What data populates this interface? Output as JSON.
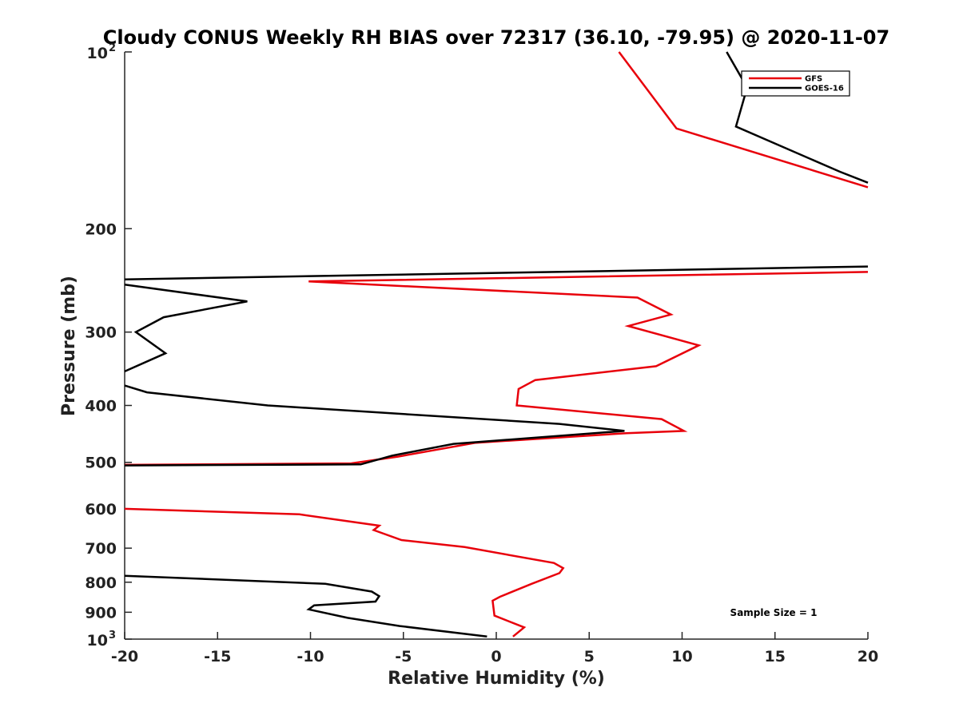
{
  "chart_data": {
    "type": "line",
    "title": "Cloudy CONUS Weekly RH BIAS over 72317 (36.10, -79.95) @ 2020-11-07",
    "xlabel": "Relative Humidity (%)",
    "ylabel": "Pressure (mb)",
    "xlim": [
      -20,
      20
    ],
    "ylim": [
      100,
      1000
    ],
    "y_scale": "log",
    "y_reversed": true,
    "x_ticks": [
      "-20",
      "-15",
      "-10",
      "-5",
      "0",
      "5",
      "10",
      "15",
      "20"
    ],
    "y_ticks": [
      {
        "value": 100,
        "label": "10",
        "sup": "2"
      },
      {
        "value": 200,
        "label": "200",
        "sup": ""
      },
      {
        "value": 300,
        "label": "300",
        "sup": ""
      },
      {
        "value": 400,
        "label": "400",
        "sup": ""
      },
      {
        "value": 500,
        "label": "500",
        "sup": ""
      },
      {
        "value": 600,
        "label": "600",
        "sup": ""
      },
      {
        "value": 700,
        "label": "700",
        "sup": ""
      },
      {
        "value": 800,
        "label": "800",
        "sup": ""
      },
      {
        "value": 900,
        "label": "900",
        "sup": ""
      },
      {
        "value": 1000,
        "label": "10",
        "sup": "3"
      }
    ],
    "legend": {
      "position": "top-right",
      "entries": [
        "GFS",
        "GOES-16"
      ]
    },
    "annotation": "Sample Size = 1",
    "series": [
      {
        "name": "GFS",
        "color": "#e8000b",
        "segments": [
          [
            [
              6.6,
              100
            ],
            [
              9.7,
              135
            ],
            [
              20,
              170
            ]
          ],
          [
            [
              20,
              237
            ],
            [
              -10.1,
              246
            ],
            [
              7.6,
              262
            ],
            [
              9.4,
              280
            ],
            [
              7.1,
              293
            ],
            [
              10.9,
              316
            ],
            [
              8.6,
              343
            ],
            [
              2.1,
              362
            ],
            [
              1.2,
              375
            ],
            [
              1.1,
              400
            ],
            [
              8.9,
              422
            ],
            [
              10.1,
              442
            ],
            [
              7.0,
              446
            ],
            [
              -1.1,
              463
            ],
            [
              -5.3,
              489
            ],
            [
              -7.8,
              502
            ],
            [
              -20,
              505
            ]
          ],
          [
            [
              -20,
              600
            ],
            [
              -10.6,
              613
            ],
            [
              -6.3,
              641
            ],
            [
              -6.6,
              652
            ],
            [
              -5.1,
              678
            ],
            [
              -1.7,
              697
            ],
            [
              3.1,
              742
            ],
            [
              3.6,
              757
            ],
            [
              3.4,
              772
            ],
            [
              1.9,
              805
            ],
            [
              0.2,
              847
            ],
            [
              -0.2,
              860
            ],
            [
              -0.1,
              912
            ],
            [
              1.5,
              955
            ],
            [
              0.9,
              990
            ]
          ]
        ]
      },
      {
        "name": "GOES-16",
        "color": "#000000",
        "segments": [
          [
            [
              12.4,
              100
            ],
            [
              13.5,
              115
            ],
            [
              12.9,
              134
            ],
            [
              18.5,
              160
            ],
            [
              20,
              167
            ]
          ],
          [
            [
              20,
              232
            ],
            [
              -20,
              244
            ]
          ],
          [
            [
              -20,
              249
            ],
            [
              -13.4,
              266
            ],
            [
              -17.9,
              283
            ],
            [
              -19.4,
              300
            ],
            [
              -17.8,
              326
            ],
            [
              -20,
              350
            ]
          ],
          [
            [
              -20,
              370
            ],
            [
              -18.8,
              380
            ],
            [
              -12.3,
              400
            ],
            [
              3.4,
              430
            ],
            [
              6.9,
              442
            ],
            [
              -2.3,
              465
            ],
            [
              -5.6,
              487
            ],
            [
              -7.3,
              504
            ],
            [
              -20,
              506
            ]
          ],
          [
            [
              -20,
              780
            ],
            [
              -9.2,
              805
            ],
            [
              -6.7,
              830
            ],
            [
              -6.3,
              845
            ],
            [
              -6.5,
              863
            ],
            [
              -9.8,
              876
            ],
            [
              -10.1,
              890
            ],
            [
              -8.0,
              920
            ],
            [
              -5.2,
              950
            ],
            [
              -0.5,
              990
            ]
          ]
        ]
      }
    ]
  }
}
